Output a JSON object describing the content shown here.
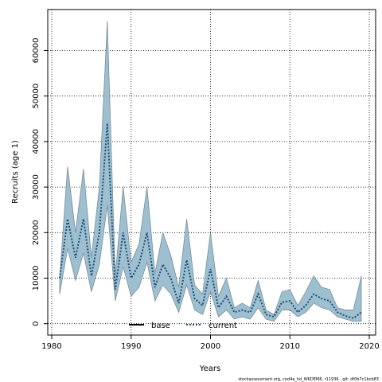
{
  "chart_data": {
    "type": "area",
    "xlabel": "Years",
    "ylabel": "Recruits (age 1)",
    "xlim": [
      1979.5,
      2020.8
    ],
    "ylim": [
      -2500,
      69000
    ],
    "xticks": [
      1980,
      1990,
      2000,
      2010,
      2020
    ],
    "yticks": [
      0,
      10000,
      20000,
      30000,
      40000,
      50000,
      60000
    ],
    "grid": true,
    "legend_position": "bottom-center",
    "x": [
      1981,
      1982,
      1983,
      1984,
      1985,
      1986,
      1987,
      1988,
      1989,
      1990,
      1991,
      1992,
      1993,
      1994,
      1995,
      1996,
      1997,
      1998,
      1999,
      2000,
      2001,
      2002,
      2003,
      2004,
      2005,
      2006,
      2007,
      2008,
      2009,
      2010,
      2011,
      2012,
      2013,
      2014,
      2015,
      2016,
      2017,
      2018,
      2019
    ],
    "series": [
      {
        "name": "base",
        "line_style": "solid",
        "values": [
          10000,
          23000,
          14500,
          23000,
          10500,
          20000,
          44000,
          7500,
          20000,
          10000,
          13000,
          20000,
          8000,
          13000,
          10000,
          4500,
          14000,
          5500,
          4000,
          12000,
          3500,
          6000,
          2500,
          3000,
          2500,
          6500,
          2000,
          1500,
          4700,
          5000,
          2500,
          4000,
          6500,
          5500,
          5000,
          2500,
          1700,
          1200,
          2500
        ],
        "upper": [
          10000,
          34500,
          20000,
          34000,
          14500,
          30000,
          66500,
          10500,
          30000,
          13500,
          17500,
          30000,
          11000,
          20000,
          15000,
          8000,
          23000,
          8500,
          6500,
          20000,
          6000,
          10000,
          3500,
          4500,
          3500,
          9500,
          3000,
          2000,
          7000,
          7500,
          4000,
          7000,
          10500,
          8000,
          7500,
          3500,
          3000,
          3000,
          10500
        ],
        "lower": [
          6500,
          16500,
          9500,
          15500,
          7000,
          13000,
          26000,
          5000,
          12500,
          6000,
          8000,
          13500,
          5000,
          8500,
          6500,
          2500,
          8500,
          3000,
          2000,
          7000,
          1500,
          3000,
          1000,
          1500,
          1000,
          3500,
          1000,
          500,
          3000,
          3000,
          1500,
          2500,
          4500,
          3500,
          3000,
          1500,
          1000,
          500,
          500
        ]
      },
      {
        "name": "current",
        "line_style": "dotted",
        "values": [
          10000,
          23000,
          14500,
          23000,
          10500,
          20000,
          44000,
          7500,
          20000,
          10000,
          13000,
          20000,
          8000,
          13000,
          10000,
          4500,
          14000,
          5500,
          4000,
          12000,
          3500,
          6000,
          2500,
          3000,
          2500,
          6500,
          2000,
          1500,
          4700,
          5000,
          2500,
          4000,
          6500,
          5500,
          5000,
          2500,
          1700,
          1200,
          2500
        ]
      }
    ],
    "colors": {
      "band_fill": "#9dbfcf",
      "band_stroke": "#7a8e99",
      "line": "#000000",
      "current_line": "#1f4e79",
      "grid": "#000000"
    }
  },
  "footer": "stockassessment.org, cod4a_hd_WKDEM8, r11936 , git: df0b7c1bcb83"
}
